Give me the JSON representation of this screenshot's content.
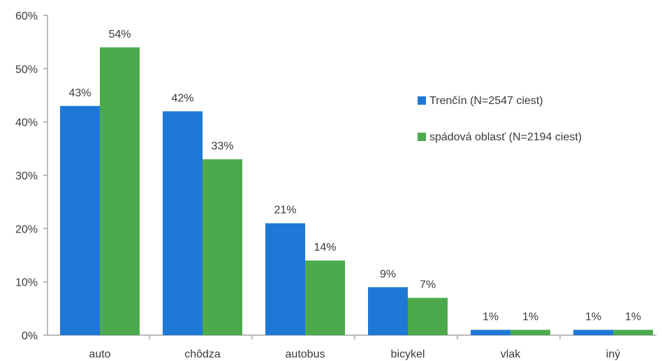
{
  "chart_data": {
    "type": "bar",
    "title": "",
    "xlabel": "",
    "ylabel": "",
    "ylim": [
      0,
      60
    ],
    "yticks": [
      0,
      10,
      20,
      30,
      40,
      50,
      60
    ],
    "ytick_labels": [
      "0%",
      "10%",
      "20%",
      "30%",
      "40%",
      "50%",
      "60%"
    ],
    "grid": false,
    "legend_position": "right",
    "categories": [
      "auto",
      "chôdza",
      "autobus",
      "bicykel",
      "vlak",
      "iný"
    ],
    "series": [
      {
        "name": "Trenčín (N=2547 ciest)",
        "color": "#1e78d6",
        "values": [
          43,
          42,
          21,
          9,
          1,
          1
        ],
        "data_labels": [
          "43%",
          "42%",
          "21%",
          "9%",
          "1%",
          "1%"
        ]
      },
      {
        "name": "spádová oblasť (N=2194 ciest)",
        "color": "#4caa4c",
        "values": [
          54,
          33,
          14,
          7,
          1,
          1
        ],
        "data_labels": [
          "54%",
          "33%",
          "14%",
          "7%",
          "1%",
          "1%"
        ]
      }
    ],
    "axis_color": "#a6a6a6"
  }
}
